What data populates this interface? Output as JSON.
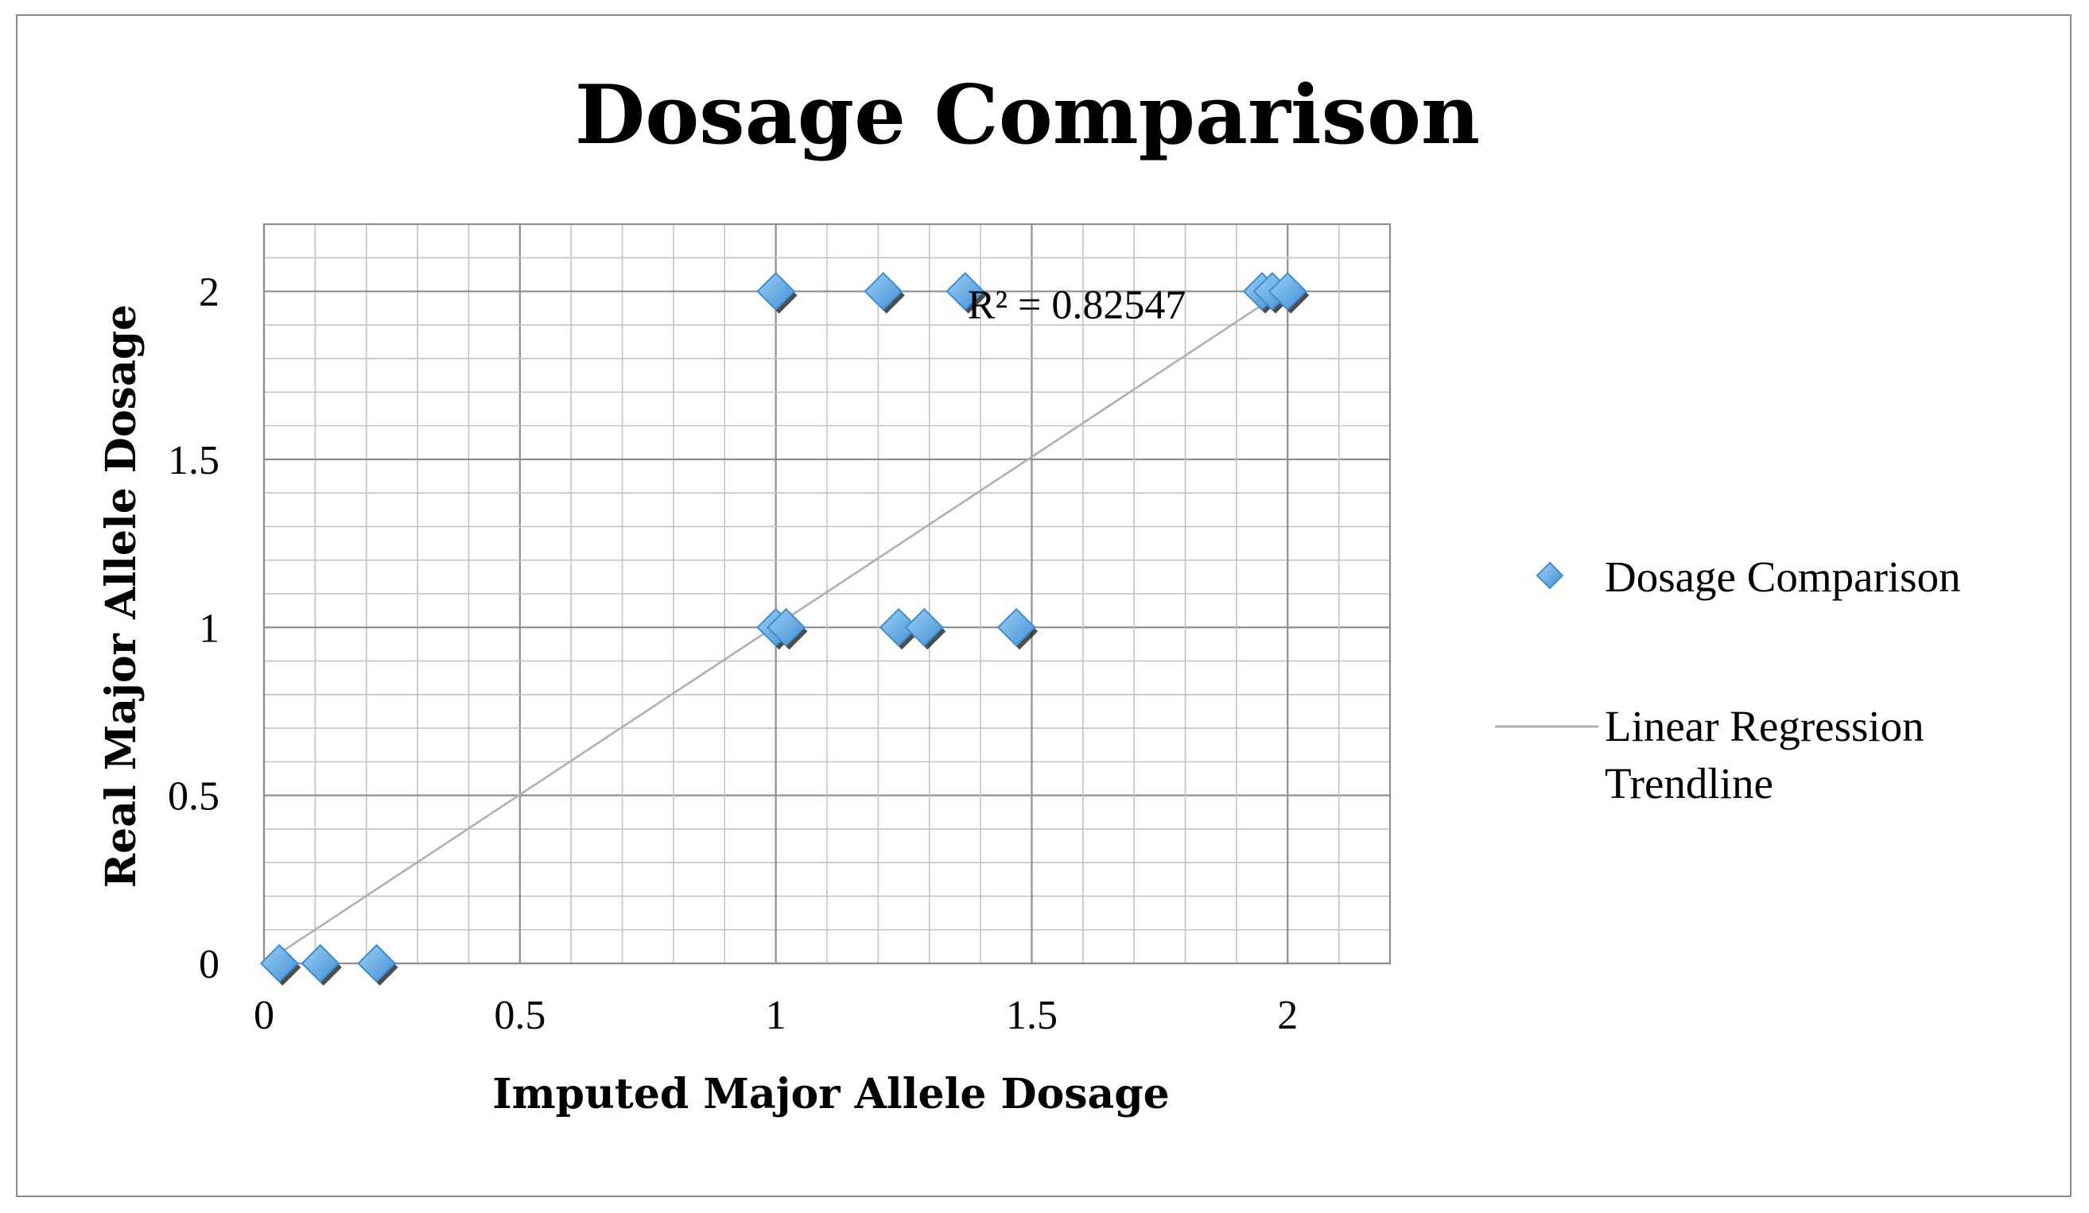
{
  "chart_data": {
    "type": "scatter",
    "title": "Dosage Comparison",
    "xlabel": "Imputed Major Allele Dosage",
    "ylabel": "Real Major Allele Dosage",
    "xlim": [
      0,
      2.2
    ],
    "ylim": [
      0,
      2.2
    ],
    "x_ticks": [
      0,
      0.5,
      1,
      1.5,
      2
    ],
    "x_tick_labels": [
      "0",
      "0.5",
      "1",
      "1.5",
      "2"
    ],
    "y_ticks": [
      0,
      0.5,
      1,
      1.5,
      2
    ],
    "y_tick_labels": [
      "0",
      "0.5",
      "1",
      "1.5",
      "2"
    ],
    "minor_gridline_step": 0.1,
    "grid": true,
    "series": [
      {
        "name": "Dosage Comparison",
        "marker": "diamond",
        "color": "#5aa9e6",
        "points": [
          {
            "x": 0.03,
            "y": 0
          },
          {
            "x": 0.11,
            "y": 0
          },
          {
            "x": 0.22,
            "y": 0
          },
          {
            "x": 1.0,
            "y": 1
          },
          {
            "x": 1.02,
            "y": 1
          },
          {
            "x": 1.24,
            "y": 1
          },
          {
            "x": 1.29,
            "y": 1
          },
          {
            "x": 1.47,
            "y": 1
          },
          {
            "x": 1.0,
            "y": 2
          },
          {
            "x": 1.21,
            "y": 2
          },
          {
            "x": 1.37,
            "y": 2
          },
          {
            "x": 1.95,
            "y": 2
          },
          {
            "x": 1.97,
            "y": 2
          },
          {
            "x": 2.0,
            "y": 2
          }
        ]
      }
    ],
    "trendline": {
      "name": "Linear Regression Trendline",
      "type": "linear",
      "color": "#b0b0b0",
      "x_range": [
        0.03,
        2.01
      ],
      "start": [
        0.03,
        0.03
      ],
      "end": [
        2.01,
        2.02
      ],
      "r_squared_label": "R² = 0.82547"
    },
    "legend": {
      "position": "right",
      "entries": [
        "Dosage Comparison",
        "Linear Regression Trendline"
      ]
    }
  }
}
